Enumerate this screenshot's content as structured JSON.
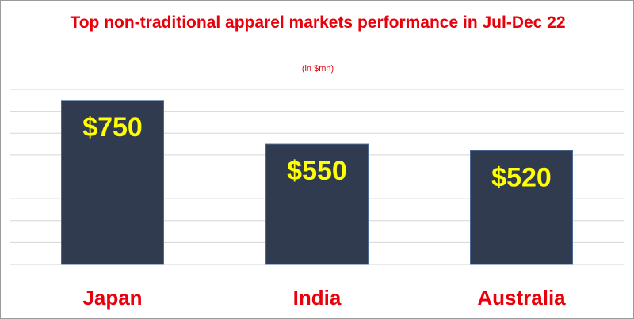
{
  "chart_data": {
    "type": "bar",
    "title": "Top non-traditional apparel markets performance in Jul-Dec 22",
    "subtitle": "(in $mn)",
    "categories": [
      "Japan",
      "India",
      "Australia"
    ],
    "values": [
      750,
      550,
      520
    ],
    "value_labels": [
      "$750",
      "$550",
      "$520"
    ],
    "color": "#303b4f",
    "ylim": [
      0,
      800
    ],
    "yticks": [
      0,
      100,
      200,
      300,
      400,
      500,
      600,
      700,
      800
    ],
    "grid": true
  }
}
